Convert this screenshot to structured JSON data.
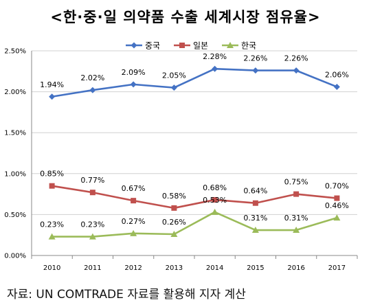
{
  "title": "<한·중·일 의약품 수출 세계시장 점유율>",
  "source": "자료: UN COMTRADE 자료를 활용해 지자 계산",
  "chart_data": {
    "type": "line",
    "title": "<한·중·일 의약품 수출 세계시장 점유율>",
    "xlabel": "",
    "ylabel": "",
    "x": [
      "2010",
      "2011",
      "2012",
      "2013",
      "2014",
      "2015",
      "2016",
      "2017"
    ],
    "ylim": [
      0,
      2.5
    ],
    "yticks": [
      "0.00%",
      "0.50%",
      "1.00%",
      "1.50%",
      "2.00%",
      "2.50%"
    ],
    "grid": "horizontal",
    "legend_position": "top",
    "series": [
      {
        "name": "중국",
        "color": "#4472C4",
        "marker": "diamond",
        "values": [
          1.94,
          2.02,
          2.09,
          2.05,
          2.28,
          2.26,
          2.26,
          2.06
        ],
        "labels": [
          "1.94%",
          "2.02%",
          "2.09%",
          "2.05%",
          "2.28%",
          "2.26%",
          "2.26%",
          "2.06%"
        ]
      },
      {
        "name": "일본",
        "color": "#C0504D",
        "marker": "square",
        "values": [
          0.85,
          0.77,
          0.67,
          0.58,
          0.68,
          0.64,
          0.75,
          0.7
        ],
        "labels": [
          "0.85%",
          "0.77%",
          "0.67%",
          "0.58%",
          "0.68%",
          "0.64%",
          "0.75%",
          "0.70%"
        ]
      },
      {
        "name": "한국",
        "color": "#9BBB59",
        "marker": "triangle",
        "values": [
          0.23,
          0.23,
          0.27,
          0.26,
          0.53,
          0.31,
          0.31,
          0.46
        ],
        "labels": [
          "0.23%",
          "0.23%",
          "0.27%",
          "0.26%",
          "0.53%",
          "0.31%",
          "0.31%",
          "0.46%"
        ]
      }
    ]
  }
}
